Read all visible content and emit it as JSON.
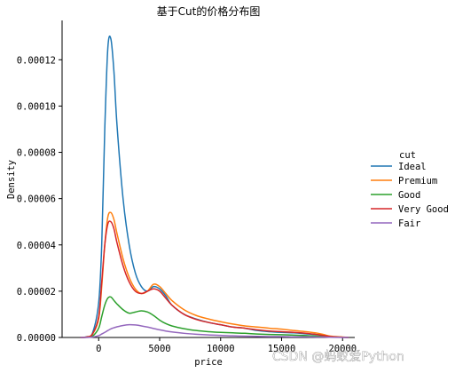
{
  "chart_data": {
    "type": "line",
    "title": "基于Cut的价格分布图",
    "xlabel": "price",
    "ylabel": "Density",
    "xlim": [
      -3000,
      21000
    ],
    "ylim": [
      0,
      0.000137
    ],
    "x_ticks": [
      0,
      5000,
      10000,
      15000,
      20000
    ],
    "x_tick_labels": [
      "0",
      "5000",
      "10000",
      "15000",
      "20000"
    ],
    "y_ticks": [
      0,
      2e-05,
      4e-05,
      6e-05,
      8e-05,
      0.0001,
      0.00012
    ],
    "y_tick_labels": [
      "0.00000",
      "0.00002",
      "0.00004",
      "0.00006",
      "0.00008",
      "0.00010",
      "0.00012"
    ],
    "grid": false,
    "legend": {
      "title": "cut",
      "placement": "right"
    },
    "x": [
      -1500,
      -1000,
      -500,
      0,
      250,
      500,
      750,
      1000,
      1250,
      1500,
      2000,
      2500,
      3000,
      3500,
      4000,
      4500,
      5000,
      5500,
      6000,
      7000,
      8000,
      9000,
      10000,
      11000,
      12000,
      13000,
      14000,
      15000,
      16000,
      17000,
      18000,
      18500,
      19000,
      20000,
      20500
    ],
    "series": [
      {
        "name": "Ideal",
        "color": "#1f77b4",
        "values": [
          0,
          3e-07,
          2e-06,
          1.5e-05,
          4e-05,
          9e-05,
          0.000125,
          0.000129,
          0.000115,
          9.2e-05,
          6e-05,
          4e-05,
          2.8e-05,
          2.2e-05,
          2e-05,
          2.2e-05,
          2.1e-05,
          1.8e-05,
          1.4e-05,
          1e-05,
          8e-06,
          6.5e-06,
          5.5e-06,
          4.5e-06,
          4e-06,
          3e-06,
          2.5e-06,
          2.2e-06,
          2e-06,
          1.6e-06,
          1.2e-06,
          8e-07,
          4e-07,
          1e-07,
          0
        ]
      },
      {
        "name": "Premium",
        "color": "#ff7f0e",
        "values": [
          0,
          2e-07,
          1.5e-06,
          8e-06,
          2.2e-05,
          4e-05,
          5.2e-05,
          5.4e-05,
          5.1e-05,
          4.5e-05,
          3.4e-05,
          2.6e-05,
          2.1e-05,
          1.9e-05,
          2e-05,
          2.3e-05,
          2.2e-05,
          1.9e-05,
          1.6e-05,
          1.2e-05,
          9.5e-06,
          8e-06,
          6.8e-06,
          5.8e-06,
          5e-06,
          4.5e-06,
          4e-06,
          3.6e-06,
          3e-06,
          2.5e-06,
          1.8e-06,
          1.2e-06,
          6e-07,
          2e-07,
          0
        ]
      },
      {
        "name": "Good",
        "color": "#2ca02c",
        "values": [
          0,
          1e-07,
          6e-07,
          4e-06,
          9e-06,
          1.4e-05,
          1.7e-05,
          1.75e-05,
          1.6e-05,
          1.45e-05,
          1.2e-05,
          1.05e-05,
          1.1e-05,
          1.15e-05,
          1.1e-05,
          9.5e-06,
          7.5e-06,
          6e-06,
          5e-06,
          3.8e-06,
          3e-06,
          2.5e-06,
          2.2e-06,
          2e-06,
          1.8e-06,
          1.5e-06,
          1.3e-06,
          1.2e-06,
          1e-06,
          8e-07,
          6e-07,
          4e-07,
          2e-07,
          1e-07,
          0
        ]
      },
      {
        "name": "Very Good",
        "color": "#d62728",
        "values": [
          0,
          2e-07,
          1.5e-06,
          9e-06,
          2.4e-05,
          4e-05,
          4.9e-05,
          5e-05,
          4.7e-05,
          4.1e-05,
          3.1e-05,
          2.4e-05,
          2e-05,
          1.9e-05,
          2e-05,
          2.1e-05,
          2e-05,
          1.7e-05,
          1.4e-05,
          1e-05,
          7.8e-06,
          6.5e-06,
          5.5e-06,
          4.5e-06,
          4e-06,
          3.3e-06,
          2.8e-06,
          2.5e-06,
          2.2e-06,
          1.8e-06,
          1.2e-06,
          8e-07,
          4e-07,
          1e-07,
          0
        ]
      },
      {
        "name": "Fair",
        "color": "#9467bd",
        "values": [
          0,
          0,
          2e-07,
          8e-07,
          1.5e-06,
          2.2e-06,
          3e-06,
          3.7e-06,
          4.2e-06,
          4.6e-06,
          5.2e-06,
          5.5e-06,
          5.4e-06,
          5e-06,
          4.5e-06,
          3.9e-06,
          3.3e-06,
          2.8e-06,
          2.4e-06,
          1.8e-06,
          1.4e-06,
          1.1e-06,
          9e-07,
          7e-07,
          6e-07,
          5e-07,
          4e-07,
          4e-07,
          3e-07,
          3e-07,
          2e-07,
          2e-07,
          1e-07,
          0,
          0
        ]
      }
    ]
  },
  "watermark": "CSDN @蚂蚁爱Python"
}
